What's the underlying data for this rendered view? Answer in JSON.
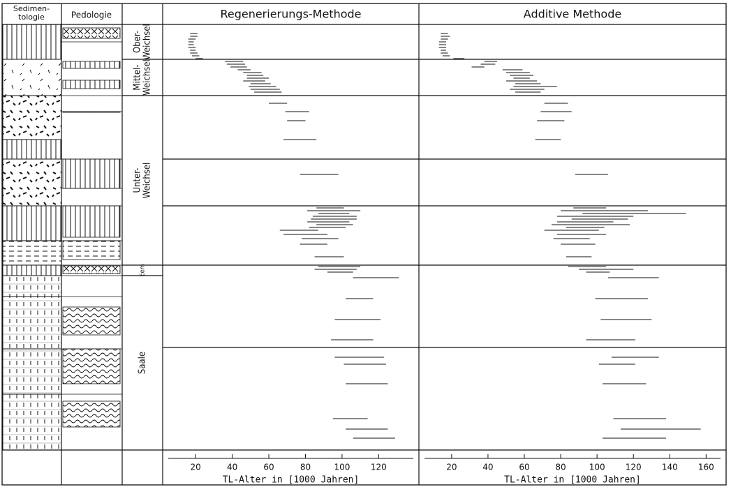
{
  "columns": {
    "sedimentology": [
      "Sedimen-",
      "tologie"
    ],
    "pedology": "Pedologie"
  },
  "stratigraphy": [
    {
      "label": [
        "Ober-",
        "Weichsel"
      ]
    },
    {
      "label": [
        "Mittel-",
        "Weichsel"
      ]
    },
    {
      "label": [
        "Unter-",
        "Weichsel"
      ]
    },
    {
      "label": [
        "Eem"
      ]
    },
    {
      "label": [
        "Saale"
      ]
    }
  ],
  "chart_data": [
    {
      "type": "range",
      "title": "Regenerierungs-Methode",
      "x_label": "TL-Alter in [1000 Jahren]",
      "color": "#111111",
      "xlim": [
        2,
        142
      ],
      "xticks": [
        20,
        40,
        60,
        80,
        100,
        120
      ],
      "values": [
        [
          17,
          21
        ],
        [
          17,
          21
        ],
        [
          16,
          20
        ],
        [
          16,
          19
        ],
        [
          16,
          19
        ],
        [
          16,
          20
        ],
        [
          17,
          20
        ],
        [
          17,
          21
        ],
        [
          18,
          22
        ],
        [
          20,
          24
        ],
        [
          36,
          46
        ],
        [
          37,
          47
        ],
        [
          39,
          48
        ],
        [
          43,
          50
        ],
        [
          46,
          56
        ],
        [
          48,
          57
        ],
        [
          48,
          60
        ],
        [
          46,
          58
        ],
        [
          50,
          61
        ],
        [
          49,
          64
        ],
        [
          50,
          66
        ],
        [
          52,
          67
        ],
        [
          60,
          70
        ],
        [
          69,
          82
        ],
        [
          70,
          80
        ],
        [
          68,
          86
        ],
        [
          77,
          98
        ],
        [
          86,
          101
        ],
        [
          81,
          110
        ],
        [
          87,
          104
        ],
        [
          84,
          108
        ],
        [
          83,
          108
        ],
        [
          81,
          104
        ],
        [
          86,
          106
        ],
        [
          82,
          102
        ],
        [
          66,
          87
        ],
        [
          68,
          92
        ],
        [
          78,
          98
        ],
        [
          77,
          92
        ],
        [
          85,
          101
        ],
        [
          87,
          110
        ],
        [
          85,
          108
        ],
        [
          92,
          106
        ],
        [
          106,
          131
        ],
        [
          102,
          117
        ],
        [
          96,
          121
        ],
        [
          94,
          117
        ],
        [
          96,
          123
        ],
        [
          101,
          124
        ],
        [
          102,
          125
        ],
        [
          95,
          114
        ],
        [
          102,
          125
        ],
        [
          106,
          129
        ]
      ]
    },
    {
      "type": "range",
      "title": "Additive Methode",
      "x_label": "TL-Alter in [1000 Jahren]",
      "color": "#111111",
      "xlim": [
        2,
        171
      ],
      "xticks": [
        20,
        40,
        60,
        80,
        100,
        120,
        140,
        160
      ],
      "values": [
        [
          14,
          18
        ],
        [
          14,
          19
        ],
        [
          14,
          18
        ],
        [
          13,
          17
        ],
        [
          13,
          17
        ],
        [
          13,
          17
        ],
        [
          14,
          17
        ],
        [
          14,
          18
        ],
        [
          15,
          19
        ],
        [
          21,
          27
        ],
        [
          38,
          45
        ],
        [
          36,
          44
        ],
        [
          31,
          38
        ],
        [
          48,
          59
        ],
        [
          50,
          63
        ],
        [
          52,
          65
        ],
        [
          54,
          63
        ],
        [
          50,
          67
        ],
        [
          55,
          69
        ],
        [
          54,
          78
        ],
        [
          52,
          71
        ],
        [
          55,
          69
        ],
        [
          71,
          84
        ],
        [
          69,
          86
        ],
        [
          67,
          82
        ],
        [
          66,
          80
        ],
        [
          88,
          106
        ],
        [
          87,
          105
        ],
        [
          80,
          128
        ],
        [
          92,
          149
        ],
        [
          78,
          120
        ],
        [
          86,
          117
        ],
        [
          78,
          109
        ],
        [
          75,
          118
        ],
        [
          83,
          104
        ],
        [
          71,
          101
        ],
        [
          78,
          105
        ],
        [
          76,
          96
        ],
        [
          80,
          99
        ],
        [
          83,
          97
        ],
        [
          84,
          105
        ],
        [
          90,
          120
        ],
        [
          94,
          107
        ],
        [
          106,
          134
        ],
        [
          99,
          128
        ],
        [
          102,
          130
        ],
        [
          94,
          121
        ],
        [
          108,
          134
        ],
        [
          101,
          121
        ],
        [
          103,
          127
        ],
        [
          109,
          138
        ],
        [
          113,
          157
        ],
        [
          103,
          138
        ]
      ]
    }
  ]
}
